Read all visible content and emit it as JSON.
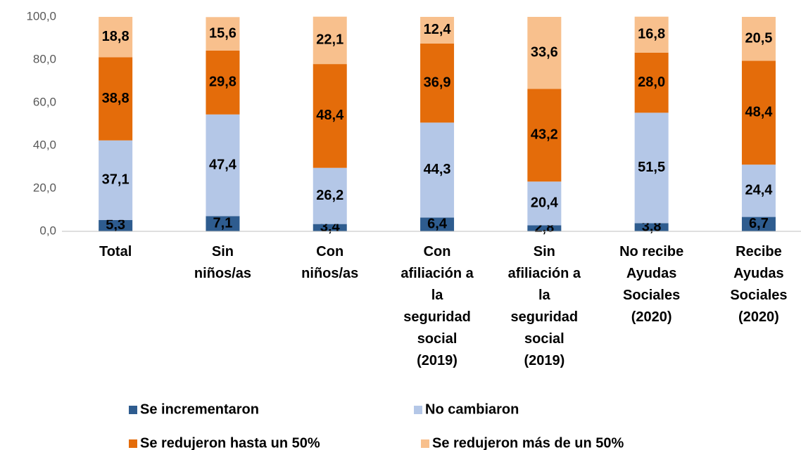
{
  "chart_data": {
    "type": "stacked_bar",
    "categories": [
      "Total",
      "Sin niños/as",
      "Con niños/as",
      "Con afiliación a la seguridad social (2019)",
      "Sin afiliación a la seguridad social (2019)",
      "No recibe Ayudas Sociales (2020)",
      "Recibe Ayudas Sociales (2020)"
    ],
    "series": [
      {
        "name": "Se incrementaron",
        "color": "#2e5c8f",
        "values": [
          5.3,
          7.1,
          3.4,
          6.4,
          2.8,
          3.8,
          6.7
        ],
        "value_labels": [
          "5,3",
          "7,1",
          "3,4",
          "6,4",
          "2,8",
          "3,8",
          "6,7"
        ]
      },
      {
        "name": "No cambiaron",
        "color": "#b4c7e7",
        "values": [
          37.1,
          47.4,
          26.2,
          44.3,
          20.4,
          51.5,
          24.4
        ],
        "value_labels": [
          "37,1",
          "47,4",
          "26,2",
          "44,3",
          "20,4",
          "51,5",
          "24,4"
        ]
      },
      {
        "name": "Se redujeron hasta un 50%",
        "color": "#e46c0a",
        "values": [
          38.8,
          29.8,
          48.4,
          36.9,
          43.2,
          28.0,
          48.4
        ],
        "value_labels": [
          "38,8",
          "29,8",
          "48,4",
          "36,9",
          "43,2",
          "28,0",
          "48,4"
        ]
      },
      {
        "name": "Se redujeron más de un 50%",
        "color": "#f8c08d",
        "values": [
          18.8,
          15.6,
          22.1,
          12.4,
          33.6,
          16.8,
          20.5
        ],
        "value_labels": [
          "18,8",
          "15,6",
          "22,1",
          "12,4",
          "33,6",
          "16,8",
          "20,5"
        ]
      }
    ],
    "ylim": [
      0,
      100
    ],
    "yticks": [
      {
        "value": 0,
        "label": "0,0"
      },
      {
        "value": 20,
        "label": "20,0"
      },
      {
        "value": 40,
        "label": "40,0"
      },
      {
        "value": 60,
        "label": "60,0"
      },
      {
        "value": 80,
        "label": "80,0"
      },
      {
        "value": 100,
        "label": "100,0"
      }
    ],
    "grid": false
  }
}
